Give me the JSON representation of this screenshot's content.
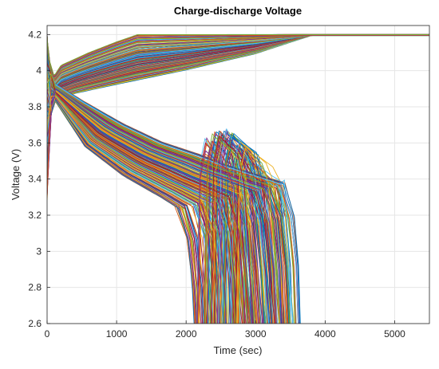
{
  "chart_data": {
    "type": "line",
    "title": "Charge-discharge Voltage",
    "xlabel": "Time (sec)",
    "ylabel": "Voltage (V)",
    "xlim": [
      0,
      5500
    ],
    "ylim": [
      2.6,
      4.25
    ],
    "xticks": [
      "0",
      "1000",
      "2000",
      "3000",
      "4000",
      "5000"
    ],
    "xtick_values": [
      0,
      1000,
      2000,
      3000,
      4000,
      5000
    ],
    "yticks": [
      "2.6",
      "2.8",
      "3",
      "3.2",
      "3.4",
      "3.6",
      "3.8",
      "4",
      "4.2"
    ],
    "ytick_values": [
      2.6,
      2.8,
      3.0,
      3.2,
      3.4,
      3.6,
      3.8,
      4.0,
      4.2
    ],
    "grid": true,
    "legend": false,
    "series_count_estimate": 180,
    "series_colors": [
      "#0072BD",
      "#D95319",
      "#EDB120",
      "#7E2F8E",
      "#77AC30",
      "#4DBEEE",
      "#A2142F"
    ],
    "envelopes": {
      "charge_lower": {
        "x": [
          0,
          80,
          400,
          1000,
          2000,
          3000,
          3800,
          4000,
          5500
        ],
        "y": [
          3.95,
          3.84,
          3.88,
          3.93,
          4.01,
          4.1,
          4.2,
          4.2,
          4.2
        ]
      },
      "charge_upper": {
        "x": [
          0,
          100,
          200,
          600,
          1000,
          1300,
          1600,
          5500
        ],
        "y": [
          4.1,
          3.97,
          4.03,
          4.1,
          4.16,
          4.2,
          4.2,
          4.2
        ]
      },
      "discharge_upper": {
        "x": [
          0,
          80,
          500,
          1000,
          1500,
          2000,
          2300,
          2600,
          2900,
          3300,
          3450,
          3650
        ],
        "y": [
          3.98,
          3.93,
          3.82,
          3.7,
          3.6,
          3.53,
          3.48,
          3.44,
          3.4,
          3.35,
          3.2,
          2.6
        ]
      },
      "discharge_lower": {
        "x": [
          0,
          80,
          500,
          1000,
          1500,
          1800,
          1950,
          2050,
          2100,
          2120
        ],
        "y": [
          3.75,
          3.85,
          3.58,
          3.42,
          3.3,
          3.22,
          3.1,
          2.9,
          2.7,
          2.6
        ]
      },
      "relaxation_peak": {
        "x": [
          2150,
          2800,
          3400
        ],
        "y": [
          3.58,
          3.7,
          3.42
        ]
      }
    }
  }
}
